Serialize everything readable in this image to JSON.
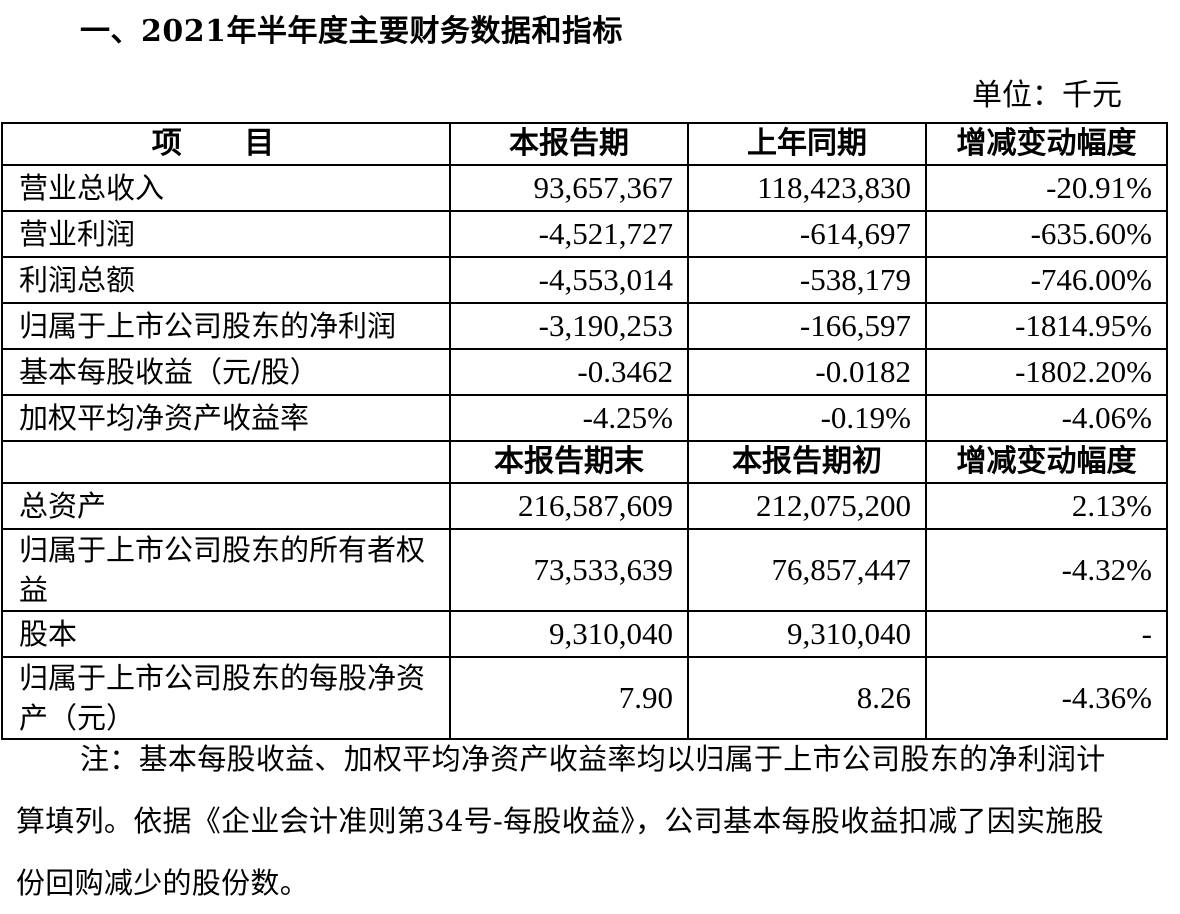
{
  "section_title": "一、2021年半年度主要财务数据和指标",
  "unit": "单位：千元",
  "table": {
    "header": {
      "item": "项 目",
      "current": "本报告期",
      "prior": "上年同期",
      "change": "增减变动幅度"
    },
    "rows_period": [
      {
        "label": "营业总收入",
        "current": "93,657,367",
        "prior": "118,423,830",
        "change": "-20.91%"
      },
      {
        "label": "营业利润",
        "current": "-4,521,727",
        "prior": "-614,697",
        "change": "-635.60%"
      },
      {
        "label": "利润总额",
        "current": "-4,553,014",
        "prior": "-538,179",
        "change": "-746.00%"
      },
      {
        "label": "归属于上市公司股东的净利润",
        "current": "-3,190,253",
        "prior": "-166,597",
        "change": "-1814.95%"
      },
      {
        "label": "基本每股收益（元/股）",
        "current": "-0.3462",
        "prior": "-0.0182",
        "change": "-1802.20%"
      },
      {
        "label": "加权平均净资产收益率",
        "current": "-4.25%",
        "prior": "-0.19%",
        "change": "-4.06%"
      }
    ],
    "subheader": {
      "item": "",
      "current": "本报告期末",
      "prior": "本报告期初",
      "change": "增减变动幅度"
    },
    "rows_balance": [
      {
        "label": "总资产",
        "current": "216,587,609",
        "prior": "212,075,200",
        "change": "2.13%"
      },
      {
        "label": "归属于上市公司股东的所有者权益",
        "current": "73,533,639",
        "prior": "76,857,447",
        "change": "-4.32%"
      },
      {
        "label": "股本",
        "current": "9,310,040",
        "prior": "9,310,040",
        "change": "-"
      },
      {
        "label": "归属于上市公司股东的每股净资产（元）",
        "current": "7.90",
        "prior": "8.26",
        "change": "-4.36%"
      }
    ]
  },
  "note": "注：基本每股收益、加权平均净资产收益率均以归属于上市公司股东的净利润计算填列。依据《企业会计准则第34号-每股收益》，公司基本每股收益扣减了因实施股份回购减少的股份数。"
}
